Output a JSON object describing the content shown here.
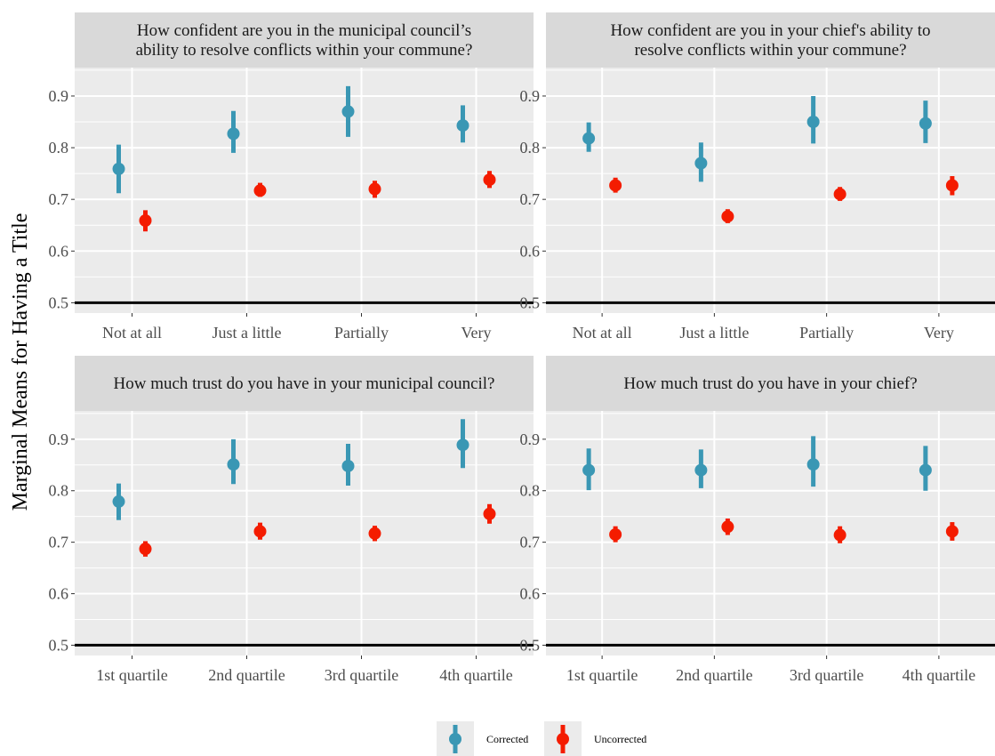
{
  "chart_data": {
    "type": "scatter",
    "ylabel": "Marginal Means for Having a Title",
    "ylim": [
      0.48,
      0.955
    ],
    "yticks": [
      0.5,
      0.6,
      0.7,
      0.8,
      0.9
    ],
    "reference_line": 0.5,
    "legend": {
      "position": "bottom",
      "title": ""
    },
    "series": [
      {
        "name": "Corrected",
        "color": "#3a97b4"
      },
      {
        "name": "Uncorrected",
        "color": "#f41c00"
      }
    ],
    "panels": [
      {
        "title": "How confident are you in the municipal council’s\nability to resolve conflicts within your commune?",
        "categories": [
          "Not at all",
          "Just a little",
          "Partially",
          "Very"
        ],
        "corrected": [
          {
            "estimate": 0.759,
            "lower": 0.712,
            "upper": 0.806
          },
          {
            "estimate": 0.827,
            "lower": 0.79,
            "upper": 0.871
          },
          {
            "estimate": 0.87,
            "lower": 0.821,
            "upper": 0.919
          },
          {
            "estimate": 0.843,
            "lower": 0.81,
            "upper": 0.882
          }
        ],
        "uncorrected": [
          {
            "estimate": 0.659,
            "lower": 0.638,
            "upper": 0.679
          },
          {
            "estimate": 0.717,
            "lower": 0.705,
            "upper": 0.732
          },
          {
            "estimate": 0.72,
            "lower": 0.703,
            "upper": 0.736
          },
          {
            "estimate": 0.738,
            "lower": 0.722,
            "upper": 0.755
          }
        ]
      },
      {
        "title": "How confident are you in your chief's ability to\nresolve conflicts within your commune?",
        "categories": [
          "Not at all",
          "Just a little",
          "Partially",
          "Very"
        ],
        "corrected": [
          {
            "estimate": 0.818,
            "lower": 0.792,
            "upper": 0.849
          },
          {
            "estimate": 0.77,
            "lower": 0.734,
            "upper": 0.81
          },
          {
            "estimate": 0.85,
            "lower": 0.808,
            "upper": 0.9
          },
          {
            "estimate": 0.847,
            "lower": 0.809,
            "upper": 0.891
          }
        ],
        "uncorrected": [
          {
            "estimate": 0.727,
            "lower": 0.713,
            "upper": 0.742
          },
          {
            "estimate": 0.667,
            "lower": 0.654,
            "upper": 0.681
          },
          {
            "estimate": 0.71,
            "lower": 0.697,
            "upper": 0.724
          },
          {
            "estimate": 0.727,
            "lower": 0.708,
            "upper": 0.745
          }
        ]
      },
      {
        "title": "How much trust do you have in your municipal council?",
        "categories": [
          "1st quartile",
          "2nd quartile",
          "3rd quartile",
          "4th quartile"
        ],
        "corrected": [
          {
            "estimate": 0.779,
            "lower": 0.743,
            "upper": 0.814
          },
          {
            "estimate": 0.851,
            "lower": 0.813,
            "upper": 0.9
          },
          {
            "estimate": 0.848,
            "lower": 0.81,
            "upper": 0.891
          },
          {
            "estimate": 0.889,
            "lower": 0.844,
            "upper": 0.939
          }
        ],
        "uncorrected": [
          {
            "estimate": 0.687,
            "lower": 0.672,
            "upper": 0.702
          },
          {
            "estimate": 0.721,
            "lower": 0.705,
            "upper": 0.738
          },
          {
            "estimate": 0.717,
            "lower": 0.702,
            "upper": 0.732
          },
          {
            "estimate": 0.755,
            "lower": 0.736,
            "upper": 0.774
          }
        ]
      },
      {
        "title": "How much trust do you have in your chief?",
        "categories": [
          "1st quartile",
          "2nd quartile",
          "3rd quartile",
          "4th quartile"
        ],
        "corrected": [
          {
            "estimate": 0.84,
            "lower": 0.801,
            "upper": 0.882
          },
          {
            "estimate": 0.84,
            "lower": 0.805,
            "upper": 0.88
          },
          {
            "estimate": 0.851,
            "lower": 0.808,
            "upper": 0.906
          },
          {
            "estimate": 0.84,
            "lower": 0.8,
            "upper": 0.887
          }
        ],
        "uncorrected": [
          {
            "estimate": 0.715,
            "lower": 0.7,
            "upper": 0.731
          },
          {
            "estimate": 0.73,
            "lower": 0.714,
            "upper": 0.746
          },
          {
            "estimate": 0.714,
            "lower": 0.698,
            "upper": 0.731
          },
          {
            "estimate": 0.721,
            "lower": 0.703,
            "upper": 0.739
          }
        ]
      }
    ]
  }
}
